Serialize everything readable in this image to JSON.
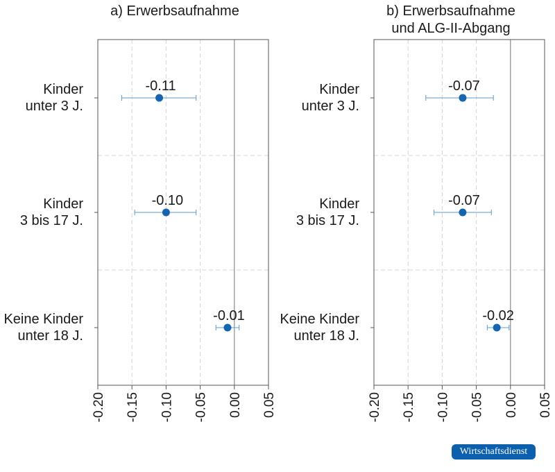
{
  "chart_data": [
    {
      "type": "scatter",
      "title_lines": [
        "a) Erwerbsaufnahme"
      ],
      "categories": [
        [
          "Kinder",
          "unter 3 J."
        ],
        [
          "Kinder",
          "3 bis 17 J."
        ],
        [
          "Keine Kinder",
          "unter 18 J."
        ]
      ],
      "points": [
        {
          "value": -0.11,
          "label": "-0.11",
          "ci": [
            -0.165,
            -0.056
          ]
        },
        {
          "value": -0.1,
          "label": "-0.10",
          "ci": [
            -0.146,
            -0.056
          ]
        },
        {
          "value": -0.01,
          "label": "-0.01",
          "ci": [
            -0.027,
            0.007
          ]
        }
      ],
      "xlim": [
        -0.2,
        0.05
      ],
      "xticks": [
        "-0.20",
        "-0.15",
        "-0.10",
        "-0.05",
        "0.00",
        "0.05"
      ],
      "grid": true,
      "zero_line": true
    },
    {
      "type": "scatter",
      "title_lines": [
        "b) Erwerbsaufnahme",
        "und ALG-II-Abgang"
      ],
      "categories": [
        [
          "Kinder",
          "unter 3 J."
        ],
        [
          "Kinder",
          "3 bis 17 J."
        ],
        [
          "Keine Kinder",
          "unter 18 J."
        ]
      ],
      "points": [
        {
          "value": -0.07,
          "label": "-0.07",
          "ci": [
            -0.124,
            -0.025
          ]
        },
        {
          "value": -0.07,
          "label": "-0.07",
          "ci": [
            -0.112,
            -0.028
          ]
        },
        {
          "value": -0.02,
          "label": "-0.02",
          "ci": [
            -0.034,
            -0.002
          ]
        }
      ],
      "xlim": [
        -0.2,
        0.05
      ],
      "xticks": [
        "-0.20",
        "-0.15",
        "-0.10",
        "-0.05",
        "0.00",
        "0.05"
      ],
      "grid": true,
      "zero_line": true
    }
  ],
  "badge": {
    "text": "Wirtschaftsdienst",
    "color": "#0b5fad"
  },
  "colors": {
    "point": "#1565b0",
    "ci": "#5a9bd0"
  }
}
